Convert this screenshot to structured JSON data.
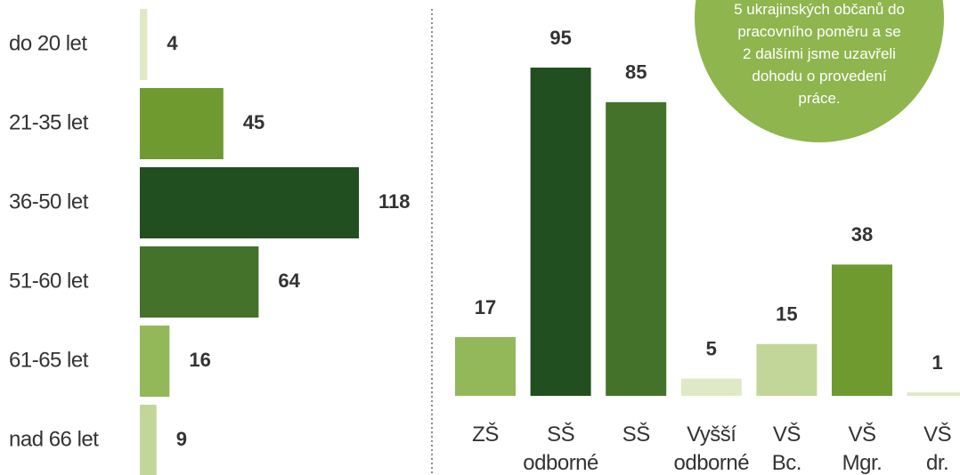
{
  "chart_data": [
    {
      "type": "hbar",
      "categories": [
        "do 20 let",
        "21-35 let",
        "36-50 let",
        "51-60 let",
        "61-65 let",
        "nad 66 let"
      ],
      "values": [
        4,
        45,
        118,
        64,
        16,
        9
      ],
      "colors": [
        "#dfe9c6",
        "#6e9a30",
        "#214f1f",
        "#44722b",
        "#92b85a",
        "#c3d69a"
      ]
    },
    {
      "type": "bar",
      "categories": [
        "ZŠ",
        "SŠ\nodborné",
        "SŠ",
        "Vyšší\nodborné",
        "VŠ\nBc.",
        "VŠ\nMgr.",
        "VŠ\ndr."
      ],
      "values": [
        17,
        95,
        85,
        5,
        15,
        38,
        1
      ],
      "colors": [
        "#92b85a",
        "#214f1f",
        "#44722b",
        "#dfe9c6",
        "#c3d69a",
        "#6e9a30",
        "#dfe9c6"
      ],
      "annotation": "5 ukrajinských občanů do\npracovního poměru a se\n2 dalšími jsme uzavřeli\ndohodu o provedení\npráce."
    }
  ]
}
